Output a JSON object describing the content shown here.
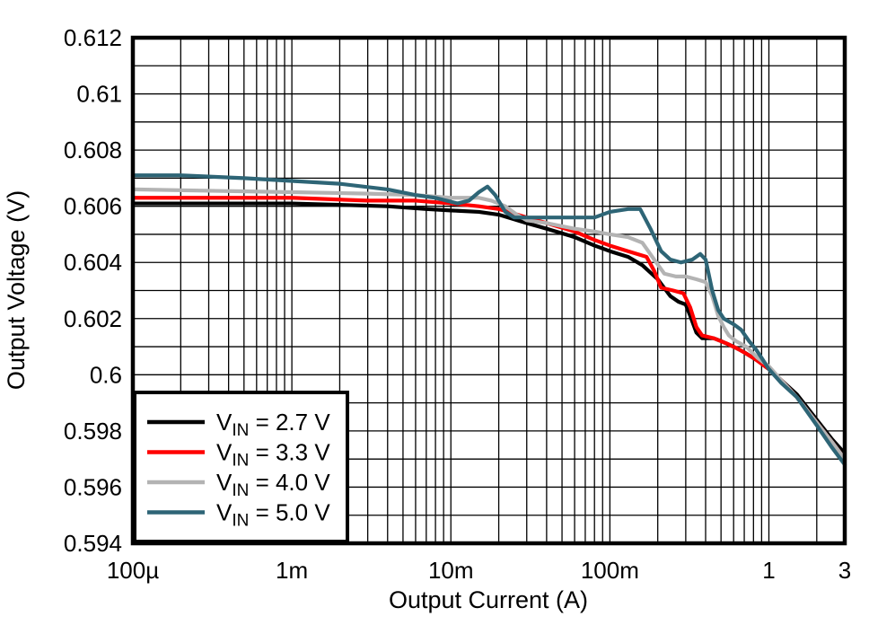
{
  "figure": {
    "background": "#ffffff"
  },
  "chart_data": {
    "type": "line",
    "title": "",
    "xlabel": "Output Current (A)",
    "ylabel": "Output Voltage (V)",
    "x_scale": "log",
    "x_range": [
      0.0001,
      3
    ],
    "y_range": [
      0.594,
      0.612
    ],
    "y_minor_step": 0.001,
    "grid": true,
    "grid_color": "#000000",
    "border_color": "#000000",
    "legend_position": "bottom-left",
    "x_ticks": [
      {
        "value": 0.0001,
        "label": "100µ"
      },
      {
        "value": 0.001,
        "label": "1m"
      },
      {
        "value": 0.01,
        "label": "10m"
      },
      {
        "value": 0.1,
        "label": "100m"
      },
      {
        "value": 1,
        "label": "1"
      },
      {
        "value": 3,
        "label": "3"
      }
    ],
    "y_ticks": [
      {
        "value": 0.594,
        "label": "0.594"
      },
      {
        "value": 0.596,
        "label": "0.596"
      },
      {
        "value": 0.598,
        "label": "0.598"
      },
      {
        "value": 0.6,
        "label": "0.6"
      },
      {
        "value": 0.602,
        "label": "0.602"
      },
      {
        "value": 0.604,
        "label": "0.604"
      },
      {
        "value": 0.606,
        "label": "0.606"
      },
      {
        "value": 0.608,
        "label": "0.608"
      },
      {
        "value": 0.61,
        "label": "0.61"
      },
      {
        "value": 0.612,
        "label": "0.612"
      }
    ],
    "series": [
      {
        "name": "VIN = 2.7 V",
        "label_prefix": "V",
        "label_sub": "IN",
        "label_rest": " = 2.7 V",
        "color": "#000000",
        "points": [
          [
            0.0001,
            0.6061
          ],
          [
            0.0003,
            0.6061
          ],
          [
            0.001,
            0.6061
          ],
          [
            0.002,
            0.60605
          ],
          [
            0.004,
            0.606
          ],
          [
            0.007,
            0.6059
          ],
          [
            0.01,
            0.60585
          ],
          [
            0.015,
            0.6058
          ],
          [
            0.02,
            0.6057
          ],
          [
            0.03,
            0.6054
          ],
          [
            0.04,
            0.6052
          ],
          [
            0.06,
            0.6049
          ],
          [
            0.08,
            0.6046
          ],
          [
            0.1,
            0.6044
          ],
          [
            0.13,
            0.6042
          ],
          [
            0.16,
            0.6039
          ],
          [
            0.2,
            0.6034
          ],
          [
            0.24,
            0.6028
          ],
          [
            0.27,
            0.6026
          ],
          [
            0.3,
            0.6025
          ],
          [
            0.32,
            0.6021
          ],
          [
            0.35,
            0.6015
          ],
          [
            0.38,
            0.6013
          ],
          [
            0.45,
            0.6013
          ],
          [
            0.5,
            0.6012
          ],
          [
            0.6,
            0.601
          ],
          [
            0.7,
            0.6008
          ],
          [
            0.85,
            0.6005
          ],
          [
            1,
            0.6002
          ],
          [
            1.2,
            0.5998
          ],
          [
            1.5,
            0.5993
          ],
          [
            2,
            0.5984
          ],
          [
            2.5,
            0.5977
          ],
          [
            3,
            0.5972
          ]
        ]
      },
      {
        "name": "VIN = 3.3 V",
        "label_prefix": "V",
        "label_sub": "IN",
        "label_rest": " = 3.3 V",
        "color": "#ff0000",
        "points": [
          [
            0.0001,
            0.6063
          ],
          [
            0.001,
            0.6063
          ],
          [
            0.003,
            0.6062
          ],
          [
            0.006,
            0.6062
          ],
          [
            0.01,
            0.6061
          ],
          [
            0.015,
            0.606
          ],
          [
            0.02,
            0.6059
          ],
          [
            0.03,
            0.6056
          ],
          [
            0.04,
            0.6054
          ],
          [
            0.06,
            0.6051
          ],
          [
            0.08,
            0.6048
          ],
          [
            0.1,
            0.6046
          ],
          [
            0.13,
            0.6044
          ],
          [
            0.17,
            0.6042
          ],
          [
            0.19,
            0.6037
          ],
          [
            0.21,
            0.6031
          ],
          [
            0.25,
            0.603
          ],
          [
            0.29,
            0.6029
          ],
          [
            0.32,
            0.6024
          ],
          [
            0.35,
            0.6017
          ],
          [
            0.38,
            0.6014
          ],
          [
            0.45,
            0.6013
          ],
          [
            0.55,
            0.6011
          ],
          [
            0.65,
            0.6009
          ],
          [
            0.8,
            0.6006
          ],
          [
            1,
            0.6002
          ],
          [
            1.2,
            0.5998
          ],
          [
            1.5,
            0.5992
          ],
          [
            2,
            0.5983
          ],
          [
            2.5,
            0.5976
          ],
          [
            3,
            0.597
          ]
        ]
      },
      {
        "name": "VIN = 4.0 V",
        "label_prefix": "V",
        "label_sub": "IN",
        "label_rest": " = 4.0 V",
        "color": "#b3b3b3",
        "points": [
          [
            0.0001,
            0.6066
          ],
          [
            0.001,
            0.6065
          ],
          [
            0.003,
            0.60645
          ],
          [
            0.006,
            0.6064
          ],
          [
            0.01,
            0.6063
          ],
          [
            0.015,
            0.6063
          ],
          [
            0.018,
            0.6062
          ],
          [
            0.022,
            0.606
          ],
          [
            0.026,
            0.6057
          ],
          [
            0.03,
            0.6055
          ],
          [
            0.04,
            0.6054
          ],
          [
            0.06,
            0.6052
          ],
          [
            0.08,
            0.6051
          ],
          [
            0.1,
            0.605
          ],
          [
            0.13,
            0.6049
          ],
          [
            0.16,
            0.6047
          ],
          [
            0.19,
            0.6041
          ],
          [
            0.22,
            0.6036
          ],
          [
            0.26,
            0.6035
          ],
          [
            0.3,
            0.6035
          ],
          [
            0.35,
            0.6034
          ],
          [
            0.4,
            0.6033
          ],
          [
            0.44,
            0.6028
          ],
          [
            0.48,
            0.6021
          ],
          [
            0.52,
            0.6017
          ],
          [
            0.56,
            0.6014
          ],
          [
            0.62,
            0.6012
          ],
          [
            0.72,
            0.601
          ],
          [
            0.85,
            0.6006
          ],
          [
            1,
            0.6003
          ],
          [
            1.2,
            0.5998
          ],
          [
            1.5,
            0.5992
          ],
          [
            2,
            0.5983
          ],
          [
            2.5,
            0.5976
          ],
          [
            3,
            0.597
          ]
        ]
      },
      {
        "name": "VIN = 5.0 V",
        "label_prefix": "V",
        "label_sub": "IN",
        "label_rest": " = 5.0 V",
        "color": "#2e6576",
        "points": [
          [
            0.0001,
            0.6071
          ],
          [
            0.0002,
            0.6071
          ],
          [
            0.0005,
            0.607
          ],
          [
            0.001,
            0.6069
          ],
          [
            0.002,
            0.6068
          ],
          [
            0.004,
            0.6066
          ],
          [
            0.006,
            0.6064
          ],
          [
            0.008,
            0.6063
          ],
          [
            0.011,
            0.6061
          ],
          [
            0.013,
            0.6062
          ],
          [
            0.015,
            0.6065
          ],
          [
            0.017,
            0.6067
          ],
          [
            0.019,
            0.6064
          ],
          [
            0.022,
            0.6058
          ],
          [
            0.025,
            0.6056
          ],
          [
            0.03,
            0.6056
          ],
          [
            0.05,
            0.6056
          ],
          [
            0.08,
            0.6056
          ],
          [
            0.1,
            0.6058
          ],
          [
            0.13,
            0.6059
          ],
          [
            0.155,
            0.6059
          ],
          [
            0.18,
            0.6052
          ],
          [
            0.21,
            0.6044
          ],
          [
            0.24,
            0.6041
          ],
          [
            0.28,
            0.604
          ],
          [
            0.33,
            0.6041
          ],
          [
            0.37,
            0.6043
          ],
          [
            0.4,
            0.6041
          ],
          [
            0.44,
            0.603
          ],
          [
            0.48,
            0.6023
          ],
          [
            0.52,
            0.602
          ],
          [
            0.6,
            0.6018
          ],
          [
            0.67,
            0.6016
          ],
          [
            0.75,
            0.6012
          ],
          [
            0.83,
            0.6009
          ],
          [
            0.9,
            0.6006
          ],
          [
            1,
            0.6002
          ],
          [
            1.2,
            0.5997
          ],
          [
            1.5,
            0.5992
          ],
          [
            2,
            0.5982
          ],
          [
            2.5,
            0.5974
          ],
          [
            3,
            0.5968
          ]
        ]
      }
    ]
  }
}
